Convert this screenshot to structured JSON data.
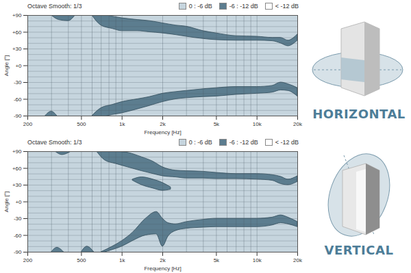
{
  "chart_data": [
    {
      "type": "contour",
      "title": "HORIZONTAL",
      "subtitle": "Octave Smooth: 1/3",
      "x_label": "Frequency [Hz]",
      "y_label": "Angle [°]",
      "log": "x",
      "grid": true,
      "legend": "top",
      "xlim": [
        200,
        20000
      ],
      "xticks": [
        200,
        500,
        {
          "value": 1000,
          "label": "1k"
        },
        {
          "value": 2000,
          "label": "2k"
        },
        {
          "value": 5000,
          "label": "5k"
        },
        {
          "value": 10000,
          "label": "10k"
        },
        {
          "value": 20000,
          "label": "20k"
        }
      ],
      "ylim": [
        -90,
        90
      ],
      "yticks": [
        -90,
        -60,
        -30,
        {
          "value": 0,
          "label": "+0"
        },
        {
          "value": 30,
          "label": "+30"
        },
        {
          "value": 60,
          "label": "+60"
        },
        {
          "value": 90,
          "label": "+90"
        }
      ],
      "series": [
        {
          "name": "0 : -6 dB",
          "color": "#c6d5de"
        },
        {
          "name": "-6 : -12 dB",
          "color": "#5c7d8f",
          "regions": [
            {
              "x": [
                600,
                700,
                850,
                1000,
                1300,
                1600,
                2000,
                2500,
                3000,
                4000,
                5000,
                7000,
                10000,
                13000,
                15000,
                17000,
                20000
              ],
              "y1": [
                90,
                72,
                66,
                62,
                62,
                60,
                58,
                55,
                52,
                48,
                46,
                45,
                45,
                44,
                40,
                35,
                45
              ],
              "y2": [
                90,
                92,
                88,
                85,
                82,
                80,
                76,
                72,
                70,
                62,
                58,
                53,
                52,
                50,
                50,
                45,
                56
              ]
            },
            {
              "x": [
                300,
                340,
                400,
                450
              ],
              "y1": [
                90,
                82,
                80,
                90
              ],
              "y2": [
                90,
                92,
                92,
                90
              ]
            },
            {
              "x": [
                600,
                700,
                850,
                1000,
                1300,
                1600,
                2000,
                2500,
                3000,
                4000,
                5000,
                7000,
                10000,
                13000,
                15000,
                17000,
                20000
              ],
              "y1": [
                -92,
                -92,
                -88,
                -85,
                -78,
                -72,
                -65,
                -60,
                -58,
                -56,
                -55,
                -52,
                -50,
                -48,
                -44,
                -45,
                -55
              ],
              "y2": [
                -90,
                -76,
                -70,
                -65,
                -60,
                -56,
                -50,
                -47,
                -45,
                -42,
                -40,
                -38,
                -38,
                -36,
                -30,
                -33,
                -40
              ]
            },
            {
              "x": [
                270,
                300,
                330
              ],
              "y1": [
                -92,
                -92,
                -92
              ],
              "y2": [
                -90,
                -82,
                -90
              ]
            }
          ]
        },
        {
          "name": "< -12 dB",
          "color": "#ffffff"
        }
      ]
    },
    {
      "type": "contour",
      "title": "VERTICAL",
      "subtitle": "Octave Smooth: 1/3",
      "x_label": "Frequency [Hz]",
      "y_label": "Angle [°]",
      "log": "x",
      "grid": true,
      "legend": "top",
      "xlim": [
        200,
        20000
      ],
      "xticks": [
        200,
        500,
        {
          "value": 1000,
          "label": "1k"
        },
        {
          "value": 2000,
          "label": "2k"
        },
        {
          "value": 5000,
          "label": "5k"
        },
        {
          "value": 10000,
          "label": "10k"
        },
        {
          "value": 20000,
          "label": "20k"
        }
      ],
      "ylim": [
        -90,
        90
      ],
      "yticks": [
        -90,
        -60,
        -30,
        {
          "value": 0,
          "label": "+0"
        },
        {
          "value": 30,
          "label": "+30"
        },
        {
          "value": 60,
          "label": "+60"
        },
        {
          "value": 90,
          "label": "+90"
        }
      ],
      "series": [
        {
          "name": "0 : -6 dB",
          "color": "#c6d5de"
        },
        {
          "name": "-6 : -12 dB",
          "color": "#5c7d8f",
          "regions": [
            {
              "x": [
                650,
                750,
                900,
                1100,
                1400,
                1700,
                2000,
                2500,
                3000,
                4000,
                5000,
                7000,
                10000,
                13000,
                15000,
                17000,
                20000
              ],
              "y1": [
                90,
                74,
                68,
                62,
                55,
                50,
                46,
                44,
                42,
                42,
                41,
                41,
                40,
                38,
                32,
                30,
                36
              ],
              "y2": [
                90,
                92,
                90,
                88,
                80,
                72,
                62,
                56,
                55,
                54,
                52,
                50,
                50,
                48,
                45,
                40,
                46
              ]
            },
            {
              "x": [
                1200,
                1400,
                1700,
                2000,
                2300
              ],
              "y1": [
                38,
                30,
                24,
                20,
                22
              ],
              "y2": [
                40,
                44,
                40,
                34,
                26
              ]
            },
            {
              "x": [
                320,
                360,
                420
              ],
              "y1": [
                90,
                84,
                90
              ],
              "y2": [
                92,
                92,
                92
              ]
            },
            {
              "x": [
                700,
                850,
                1000,
                1200,
                1500,
                1800,
                2000,
                2200,
                2500,
                3000,
                4000,
                5000,
                7000,
                10000,
                13000,
                15000,
                17000,
                20000
              ],
              "y1": [
                -92,
                -86,
                -80,
                -70,
                -60,
                -58,
                -80,
                -62,
                -52,
                -48,
                -46,
                -45,
                -45,
                -45,
                -42,
                -38,
                -40,
                -45
              ],
              "y2": [
                -90,
                -80,
                -70,
                -55,
                -30,
                -18,
                -30,
                -38,
                -40,
                -36,
                -32,
                -30,
                -30,
                -30,
                -28,
                -24,
                -28,
                -36
              ]
            },
            {
              "x": [
                500,
                550,
                620
              ],
              "y1": [
                -92,
                -92,
                -92
              ],
              "y2": [
                -90,
                -80,
                -90
              ]
            },
            {
              "x": [
                300,
                330,
                370
              ],
              "y1": [
                -92,
                -92,
                -92
              ],
              "y2": [
                -90,
                -82,
                -90
              ]
            }
          ]
        },
        {
          "name": "< -12 dB",
          "color": "#ffffff"
        }
      ]
    }
  ]
}
